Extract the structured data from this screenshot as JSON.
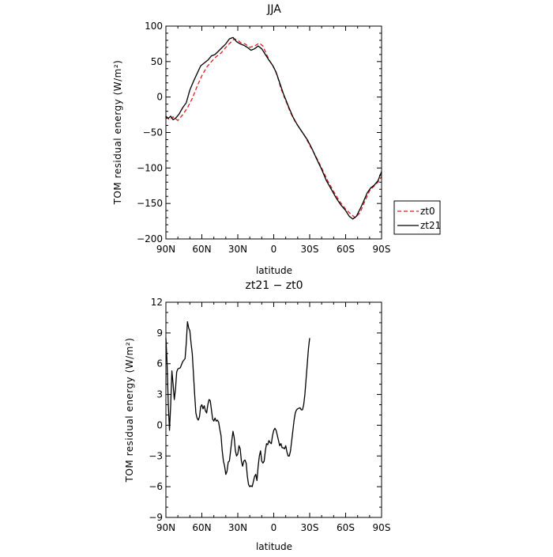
{
  "chart_data": [
    {
      "type": "line",
      "title": "JJA",
      "xlabel": "latitude",
      "ylabel": "TOM residual energy (W/m²)",
      "xlim": [
        90,
        -90
      ],
      "ylim": [
        -200,
        100
      ],
      "x_tick_values": [
        90,
        60,
        30,
        0,
        -30,
        -60,
        -90
      ],
      "x_tick_labels": [
        "90N",
        "60N",
        "30N",
        "0",
        "30S",
        "60S",
        "90S"
      ],
      "y_tick_values": [
        100,
        50,
        0,
        -50,
        -100,
        -150,
        -200
      ],
      "y_tick_labels": [
        "100",
        "50",
        "0",
        "−50",
        "−100",
        "−150",
        "−200"
      ],
      "legend_position": "right",
      "series": [
        {
          "name": "zt0",
          "color": "#e41a1c",
          "dash": "dashed",
          "points": [
            [
              90,
              -28
            ],
            [
              87,
              -32
            ],
            [
              84,
              -28
            ],
            [
              80,
              -33
            ],
            [
              76,
              -25
            ],
            [
              72,
              -15
            ],
            [
              68,
              -2
            ],
            [
              64,
              15
            ],
            [
              60,
              30
            ],
            [
              56,
              42
            ],
            [
              52,
              50
            ],
            [
              48,
              57
            ],
            [
              44,
              62
            ],
            [
              40,
              70
            ],
            [
              36,
              77
            ],
            [
              33,
              82
            ],
            [
              30,
              80
            ],
            [
              27,
              76
            ],
            [
              24,
              75
            ],
            [
              20,
              70
            ],
            [
              16,
              72
            ],
            [
              12,
              76
            ],
            [
              9,
              72
            ],
            [
              6,
              60
            ],
            [
              3,
              50
            ],
            [
              0,
              42
            ],
            [
              -3,
              30
            ],
            [
              -6,
              12
            ],
            [
              -10,
              -5
            ],
            [
              -14,
              -22
            ],
            [
              -18,
              -35
            ],
            [
              -22,
              -45
            ],
            [
              -26,
              -55
            ],
            [
              -30,
              -68
            ],
            [
              -35,
              -83
            ],
            [
              -40,
              -100
            ],
            [
              -45,
              -118
            ],
            [
              -50,
              -133
            ],
            [
              -55,
              -147
            ],
            [
              -60,
              -158
            ],
            [
              -65,
              -166
            ],
            [
              -68,
              -170
            ],
            [
              -72,
              -163
            ],
            [
              -76,
              -147
            ],
            [
              -80,
              -132
            ],
            [
              -84,
              -125
            ],
            [
              -87,
              -120
            ],
            [
              -90,
              -112
            ]
          ]
        },
        {
          "name": "zt21",
          "color": "#000000",
          "dash": "solid",
          "points": [
            [
              90,
              -27
            ],
            [
              88,
              -30
            ],
            [
              86,
              -27
            ],
            [
              84,
              -32
            ],
            [
              82,
              -30
            ],
            [
              79,
              -24
            ],
            [
              76,
              -15
            ],
            [
              73,
              -8
            ],
            [
              70,
              10
            ],
            [
              67,
              22
            ],
            [
              64,
              33
            ],
            [
              61,
              44
            ],
            [
              58,
              48
            ],
            [
              55,
              52
            ],
            [
              52,
              58
            ],
            [
              49,
              60
            ],
            [
              46,
              65
            ],
            [
              43,
              70
            ],
            [
              40,
              75
            ],
            [
              37,
              82
            ],
            [
              34,
              84
            ],
            [
              31,
              78
            ],
            [
              28,
              75
            ],
            [
              25,
              73
            ],
            [
              22,
              70
            ],
            [
              19,
              66
            ],
            [
              16,
              68
            ],
            [
              13,
              72
            ],
            [
              10,
              68
            ],
            [
              7,
              60
            ],
            [
              4,
              52
            ],
            [
              1,
              45
            ],
            [
              -2,
              35
            ],
            [
              -5,
              20
            ],
            [
              -8,
              5
            ],
            [
              -12,
              -12
            ],
            [
              -16,
              -28
            ],
            [
              -20,
              -40
            ],
            [
              -24,
              -50
            ],
            [
              -28,
              -60
            ],
            [
              -32,
              -73
            ],
            [
              -36,
              -88
            ],
            [
              -40,
              -102
            ],
            [
              -44,
              -118
            ],
            [
              -48,
              -130
            ],
            [
              -52,
              -142
            ],
            [
              -56,
              -152
            ],
            [
              -60,
              -160
            ],
            [
              -63,
              -168
            ],
            [
              -66,
              -172
            ],
            [
              -69,
              -168
            ],
            [
              -72,
              -158
            ],
            [
              -75,
              -147
            ],
            [
              -78,
              -135
            ],
            [
              -81,
              -128
            ],
            [
              -84,
              -124
            ],
            [
              -87,
              -118
            ],
            [
              -90,
              -105
            ]
          ]
        }
      ]
    },
    {
      "type": "line",
      "title": "zt21 − zt0",
      "xlabel": "latitude",
      "ylabel": "TOM residual energy (W/m²)",
      "xlim": [
        90,
        -90
      ],
      "ylim": [
        -9,
        12
      ],
      "x_tick_values": [
        90,
        60,
        30,
        0,
        -30,
        -60,
        -90
      ],
      "x_tick_labels": [
        "90N",
        "60N",
        "30N",
        "0",
        "30S",
        "60S",
        "90S"
      ],
      "y_tick_values": [
        12,
        9,
        6,
        3,
        0,
        -3,
        -6,
        -9
      ],
      "y_tick_labels": [
        "12",
        "9",
        "6",
        "3",
        "0",
        "−3",
        "−6",
        "−9"
      ],
      "series": [
        {
          "name": "zt21 − zt0",
          "color": "#000000",
          "dash": "solid",
          "points": [
            [
              90,
              8.5
            ],
            [
              89,
              6
            ],
            [
              88,
              2
            ],
            [
              87,
              -0.5
            ],
            [
              86,
              2
            ],
            [
              85,
              5.3
            ],
            [
              84,
              4
            ],
            [
              83,
              2.5
            ],
            [
              82,
              3.5
            ],
            [
              81,
              5.2
            ],
            [
              80,
              5.5
            ],
            [
              78,
              5.6
            ],
            [
              76,
              6.2
            ],
            [
              74,
              6.5
            ],
            [
              73,
              8
            ],
            [
              72,
              10.1
            ],
            [
              71,
              9.5
            ],
            [
              70,
              9.2
            ],
            [
              69,
              8
            ],
            [
              68,
              7
            ],
            [
              67,
              5
            ],
            [
              66,
              3
            ],
            [
              65,
              1.2
            ],
            [
              64,
              0.7
            ],
            [
              63,
              0.5
            ],
            [
              62,
              0.8
            ],
            [
              61,
              1.8
            ],
            [
              60,
              2
            ],
            [
              59,
              1.6
            ],
            [
              58,
              1.9
            ],
            [
              57,
              1.4
            ],
            [
              56,
              1.2
            ],
            [
              55,
              2
            ],
            [
              54,
              2.5
            ],
            [
              53,
              2.4
            ],
            [
              52,
              1.5
            ],
            [
              51,
              0.6
            ],
            [
              50,
              0.4
            ],
            [
              49,
              0.7
            ],
            [
              48,
              0.4
            ],
            [
              47,
              0.5
            ],
            [
              46,
              0.3
            ],
            [
              45,
              -0.4
            ],
            [
              44,
              -1
            ],
            [
              43,
              -2.5
            ],
            [
              42,
              -3.5
            ],
            [
              41,
              -4
            ],
            [
              40,
              -4.8
            ],
            [
              39,
              -4.5
            ],
            [
              38,
              -3.6
            ],
            [
              37,
              -3.5
            ],
            [
              36,
              -2.5
            ],
            [
              35,
              -1.5
            ],
            [
              34,
              -0.6
            ],
            [
              33,
              -1.2
            ],
            [
              32,
              -2.5
            ],
            [
              31,
              -3
            ],
            [
              30,
              -2.8
            ],
            [
              29,
              -2
            ],
            [
              28,
              -2.3
            ],
            [
              27,
              -3.5
            ],
            [
              26,
              -4
            ],
            [
              25,
              -3.5
            ],
            [
              24,
              -3.4
            ],
            [
              23,
              -3.7
            ],
            [
              22,
              -5
            ],
            [
              21,
              -5.8
            ],
            [
              20,
              -6
            ],
            [
              19,
              -5.9
            ],
            [
              18,
              -6
            ],
            [
              17,
              -5.5
            ],
            [
              16,
              -5
            ],
            [
              15,
              -4.8
            ],
            [
              14,
              -5.4
            ],
            [
              13,
              -4
            ],
            [
              12,
              -3
            ],
            [
              11,
              -2.5
            ],
            [
              10,
              -3.5
            ],
            [
              9,
              -3.7
            ],
            [
              8,
              -3.5
            ],
            [
              7,
              -2.5
            ],
            [
              6,
              -1.8
            ],
            [
              5,
              -1.9
            ],
            [
              4,
              -1.5
            ],
            [
              3,
              -1.7
            ],
            [
              2,
              -1.8
            ],
            [
              1,
              -1
            ],
            [
              0,
              -0.5
            ],
            [
              -1,
              -0.3
            ],
            [
              -2,
              -0.5
            ],
            [
              -3,
              -1
            ],
            [
              -4,
              -1.5
            ],
            [
              -5,
              -2
            ],
            [
              -6,
              -1.8
            ],
            [
              -7,
              -2.2
            ],
            [
              -8,
              -2.2
            ],
            [
              -9,
              -2.3
            ],
            [
              -10,
              -2
            ],
            [
              -11,
              -2.6
            ],
            [
              -12,
              -3
            ],
            [
              -13,
              -3
            ],
            [
              -14,
              -2.5
            ],
            [
              -15,
              -1.5
            ],
            [
              -16,
              -0.5
            ],
            [
              -17,
              0.5
            ],
            [
              -18,
              1.2
            ],
            [
              -19,
              1.5
            ],
            [
              -20,
              1.6
            ],
            [
              -22,
              1.7
            ],
            [
              -23,
              1.5
            ],
            [
              -24,
              1.5
            ],
            [
              -25,
              2
            ],
            [
              -26,
              3
            ],
            [
              -27,
              4.5
            ],
            [
              -28,
              6
            ],
            [
              -29,
              7.5
            ],
            [
              -30,
              8.5
            ]
          ]
        }
      ]
    }
  ]
}
